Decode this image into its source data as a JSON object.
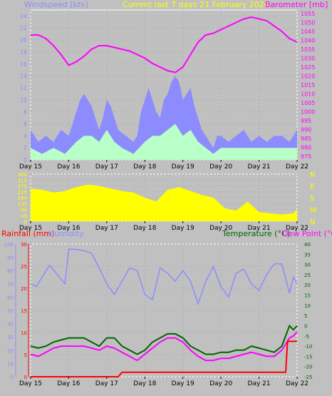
{
  "header": {
    "windspeed_label": "Windspeed [kts]",
    "period_title": "Current last 7 days 21 February 2024",
    "barometer_label": "Barometer [mb]"
  },
  "lower_header": {
    "rainfall_label": "Rainfall (mm)",
    "humidity_label": "Humidity",
    "temperature_label": "Temperature (°C)",
    "dewpoint_label": "Dew Point (°C)"
  },
  "colors": {
    "background": "#c0c0c0",
    "windspeed": "#8c8cff",
    "windspeed_avg": "#b8ffc8",
    "windspeed_gust_small": "#a8a8a8",
    "barometer": "#ff00ff",
    "direction": "#ffff00",
    "rainfall": "#ff0000",
    "humidity": "#8c8cff",
    "temperature": "#006400",
    "dewpoint": "#ff00ff",
    "title": "#ffff00",
    "plot_border": "#ffffff"
  },
  "chart_data": [
    {
      "type": "area",
      "x_ticks": [
        "Day 15",
        "Day 16",
        "Day 17",
        "Day 18",
        "Day 19",
        "Day 20",
        "Day 21",
        "Day 22"
      ],
      "left_axis": {
        "label": "Windspeed [kts]",
        "ticks": [
          "0",
          "2",
          "4",
          "6",
          "8",
          "10",
          "12",
          "14",
          "16",
          "18",
          "20",
          "22",
          "24"
        ],
        "ylim": [
          0,
          25
        ]
      },
      "right_axis": {
        "label": "Barometer [mb]",
        "ticks": [
          "975",
          "980",
          "985",
          "990",
          "995",
          "1000",
          "1005",
          "1010",
          "1015",
          "1020",
          "1025",
          "1030",
          "1035",
          "1040",
          "1045",
          "1050",
          "1055"
        ],
        "ylim": [
          973,
          1057
        ]
      },
      "series": [
        {
          "name": "Windspeed [kts]",
          "type": "area",
          "x": [
            0,
            0.2,
            0.4,
            0.6,
            0.8,
            1.0,
            1.1,
            1.2,
            1.3,
            1.4,
            1.5,
            1.6,
            1.7,
            1.8,
            1.9,
            2.0,
            2.1,
            2.3,
            2.5,
            2.7,
            2.8,
            2.9,
            3.0,
            3.1,
            3.2,
            3.3,
            3.4,
            3.5,
            3.6,
            3.7,
            3.8,
            3.9,
            4.0,
            4.1,
            4.2,
            4.3,
            4.4,
            4.5,
            4.6,
            4.7,
            4.8,
            4.9,
            5.0,
            5.2,
            5.4,
            5.6,
            5.8,
            6.0,
            6.2,
            6.4,
            6.6,
            6.8,
            7.0
          ],
          "values": [
            5,
            3,
            4,
            3,
            5,
            4,
            6,
            8,
            10,
            11,
            10,
            9,
            7,
            5,
            7,
            10,
            9,
            5,
            4,
            3,
            4,
            8,
            10,
            12,
            10,
            8,
            7,
            10,
            11,
            13,
            14,
            13,
            10,
            11,
            12,
            9,
            7,
            5,
            4,
            3,
            2,
            4,
            4,
            3,
            4,
            5,
            3,
            4,
            3,
            4,
            4,
            3,
            5
          ]
        },
        {
          "name": "Average windspeed",
          "type": "area",
          "x": [
            0,
            0.3,
            0.6,
            0.9,
            1.2,
            1.4,
            1.6,
            1.8,
            2.0,
            2.2,
            2.4,
            2.7,
            3.0,
            3.2,
            3.4,
            3.6,
            3.8,
            4.0,
            4.2,
            4.4,
            4.6,
            4.8,
            5.0,
            5.4,
            5.8,
            6.2,
            6.6,
            7.0
          ],
          "values": [
            2,
            1,
            2,
            1,
            3,
            4,
            4,
            3,
            5,
            3,
            2,
            1,
            3,
            4,
            4,
            5,
            6,
            4,
            5,
            3,
            2,
            1,
            2,
            2,
            2,
            2,
            2,
            2
          ]
        },
        {
          "name": "Barometer [mb]",
          "type": "line",
          "x": [
            0,
            0.2,
            0.4,
            0.6,
            0.8,
            1.0,
            1.2,
            1.4,
            1.6,
            1.8,
            2.0,
            2.2,
            2.4,
            2.6,
            2.8,
            3.0,
            3.2,
            3.4,
            3.6,
            3.8,
            4.0,
            4.2,
            4.4,
            4.6,
            4.8,
            5.0,
            5.2,
            5.4,
            5.6,
            5.8,
            6.0,
            6.2,
            6.4,
            6.6,
            6.8,
            7.0
          ],
          "values": [
            1043,
            1043,
            1041,
            1037,
            1032,
            1026,
            1028,
            1031,
            1035,
            1037,
            1037,
            1036,
            1035,
            1034,
            1032,
            1030,
            1027,
            1025,
            1023,
            1022,
            1025,
            1032,
            1039,
            1043,
            1044,
            1046,
            1048,
            1050,
            1052,
            1053,
            1052,
            1051,
            1048,
            1045,
            1041,
            1039
          ]
        }
      ]
    },
    {
      "type": "area",
      "x_ticks": [
        "Day 15",
        "Day 16",
        "Day 17",
        "Day 18",
        "Day 19",
        "Day 20",
        "Day 21",
        "Day 22"
      ],
      "left_axis": {
        "label": "",
        "ticks": [
          "0",
          "45",
          "90",
          "135",
          "180",
          "225",
          "270",
          "315",
          "360"
        ],
        "ylim": [
          0,
          360
        ]
      },
      "right_axis": {
        "label": "",
        "ticks": [
          "N",
          "W",
          "S",
          "E",
          "N"
        ],
        "ylim": [
          0,
          360
        ]
      },
      "series": [
        {
          "name": "Wind direction",
          "type": "area",
          "x": [
            0,
            0.3,
            0.6,
            0.9,
            1.2,
            1.5,
            1.8,
            2.1,
            2.4,
            2.7,
            3.0,
            3.3,
            3.6,
            3.9,
            4.2,
            4.5,
            4.8,
            5.1,
            5.4,
            5.7,
            6.0,
            6.3,
            6.6,
            6.9,
            7.0
          ],
          "values": [
            250,
            240,
            220,
            230,
            260,
            280,
            270,
            250,
            230,
            220,
            180,
            150,
            240,
            260,
            230,
            200,
            180,
            100,
            80,
            150,
            70,
            60,
            50,
            60,
            90
          ]
        }
      ]
    },
    {
      "type": "line",
      "x_ticks": [
        "Day 15",
        "Day 16",
        "Day 17",
        "Day 18",
        "Day 19",
        "Day 20",
        "Day 21",
        "Day 22"
      ],
      "axis_rain": {
        "label": "Rainfall (mm)",
        "ticks": [
          "0",
          "5",
          "10",
          "15",
          "20",
          "25",
          "30"
        ],
        "ylim": [
          0,
          30
        ]
      },
      "axis_humidity": {
        "label": "Humidity",
        "ticks": [
          "0",
          "10",
          "20",
          "30",
          "40",
          "50",
          "60",
          "70",
          "80",
          "90",
          "100"
        ],
        "ylim": [
          0,
          100
        ]
      },
      "axis_temp": {
        "label": "Temperature (°C)",
        "ticks": [
          "-25",
          "-20",
          "-15",
          "-10",
          "-5",
          "0",
          "5",
          "10",
          "15",
          "20",
          "25",
          "30",
          "35",
          "40"
        ],
        "ylim": [
          -25,
          40
        ]
      },
      "series": [
        {
          "name": "Humidity",
          "type": "line",
          "x": [
            0,
            0.15,
            0.3,
            0.5,
            0.7,
            0.9,
            1.0,
            1.2,
            1.4,
            1.6,
            1.8,
            2.0,
            2.2,
            2.4,
            2.6,
            2.8,
            3.0,
            3.2,
            3.4,
            3.6,
            3.8,
            4.0,
            4.2,
            4.4,
            4.6,
            4.8,
            5.0,
            5.2,
            5.4,
            5.6,
            5.8,
            6.0,
            6.2,
            6.4,
            6.6,
            6.8,
            6.9,
            7.0
          ],
          "values": [
            70,
            68,
            75,
            84,
            77,
            70,
            96,
            96,
            95,
            93,
            82,
            70,
            62,
            72,
            82,
            80,
            62,
            58,
            82,
            78,
            72,
            80,
            72,
            55,
            72,
            83,
            68,
            60,
            78,
            81,
            70,
            65,
            77,
            85,
            85,
            63,
            75,
            70
          ]
        },
        {
          "name": "Temperature (°C)",
          "type": "line",
          "x": [
            0,
            0.2,
            0.4,
            0.6,
            0.8,
            1.0,
            1.2,
            1.4,
            1.6,
            1.8,
            2.0,
            2.2,
            2.4,
            2.6,
            2.8,
            3.0,
            3.2,
            3.4,
            3.6,
            3.8,
            4.0,
            4.2,
            4.4,
            4.6,
            4.8,
            5.0,
            5.2,
            5.4,
            5.6,
            5.8,
            6.0,
            6.2,
            6.4,
            6.6,
            6.8,
            6.9,
            7.0
          ],
          "values": [
            -10,
            -11,
            -10,
            -8,
            -7,
            -6,
            -6,
            -6,
            -8,
            -10,
            -6,
            -6,
            -10,
            -12,
            -14,
            -12,
            -8,
            -6,
            -4,
            -4,
            -6,
            -10,
            -12,
            -14,
            -14,
            -13,
            -13,
            -12,
            -12,
            -10,
            -11,
            -12,
            -13,
            -10,
            0,
            -2,
            0
          ]
        },
        {
          "name": "Dew Point (°C)",
          "type": "line",
          "x": [
            0,
            0.2,
            0.4,
            0.6,
            0.8,
            1.0,
            1.2,
            1.4,
            1.6,
            1.8,
            2.0,
            2.2,
            2.4,
            2.6,
            2.8,
            3.0,
            3.2,
            3.4,
            3.6,
            3.8,
            4.0,
            4.2,
            4.4,
            4.6,
            4.8,
            5.0,
            5.2,
            5.4,
            5.6,
            5.8,
            6.0,
            6.2,
            6.4,
            6.6,
            6.8,
            6.9,
            7.0
          ],
          "values": [
            -14,
            -15,
            -13,
            -11,
            -10,
            -10,
            -10,
            -10,
            -11,
            -12,
            -10,
            -11,
            -13,
            -15,
            -17,
            -14,
            -11,
            -8,
            -6,
            -6,
            -8,
            -12,
            -15,
            -17,
            -17,
            -16,
            -16,
            -15,
            -14,
            -13,
            -14,
            -15,
            -15,
            -12,
            -6,
            -5,
            -3
          ]
        },
        {
          "name": "Rainfall (mm)",
          "type": "line",
          "x": [
            0,
            1.5,
            1.6,
            1.7,
            1.75,
            2.0,
            2.3,
            2.4,
            3.5,
            5.0,
            6.3,
            6.4,
            6.7,
            6.75,
            7.0
          ],
          "values": [
            0,
            0,
            0,
            0,
            0,
            0,
            0,
            1,
            1,
            1,
            1,
            1,
            1,
            8,
            8
          ]
        }
      ]
    }
  ]
}
